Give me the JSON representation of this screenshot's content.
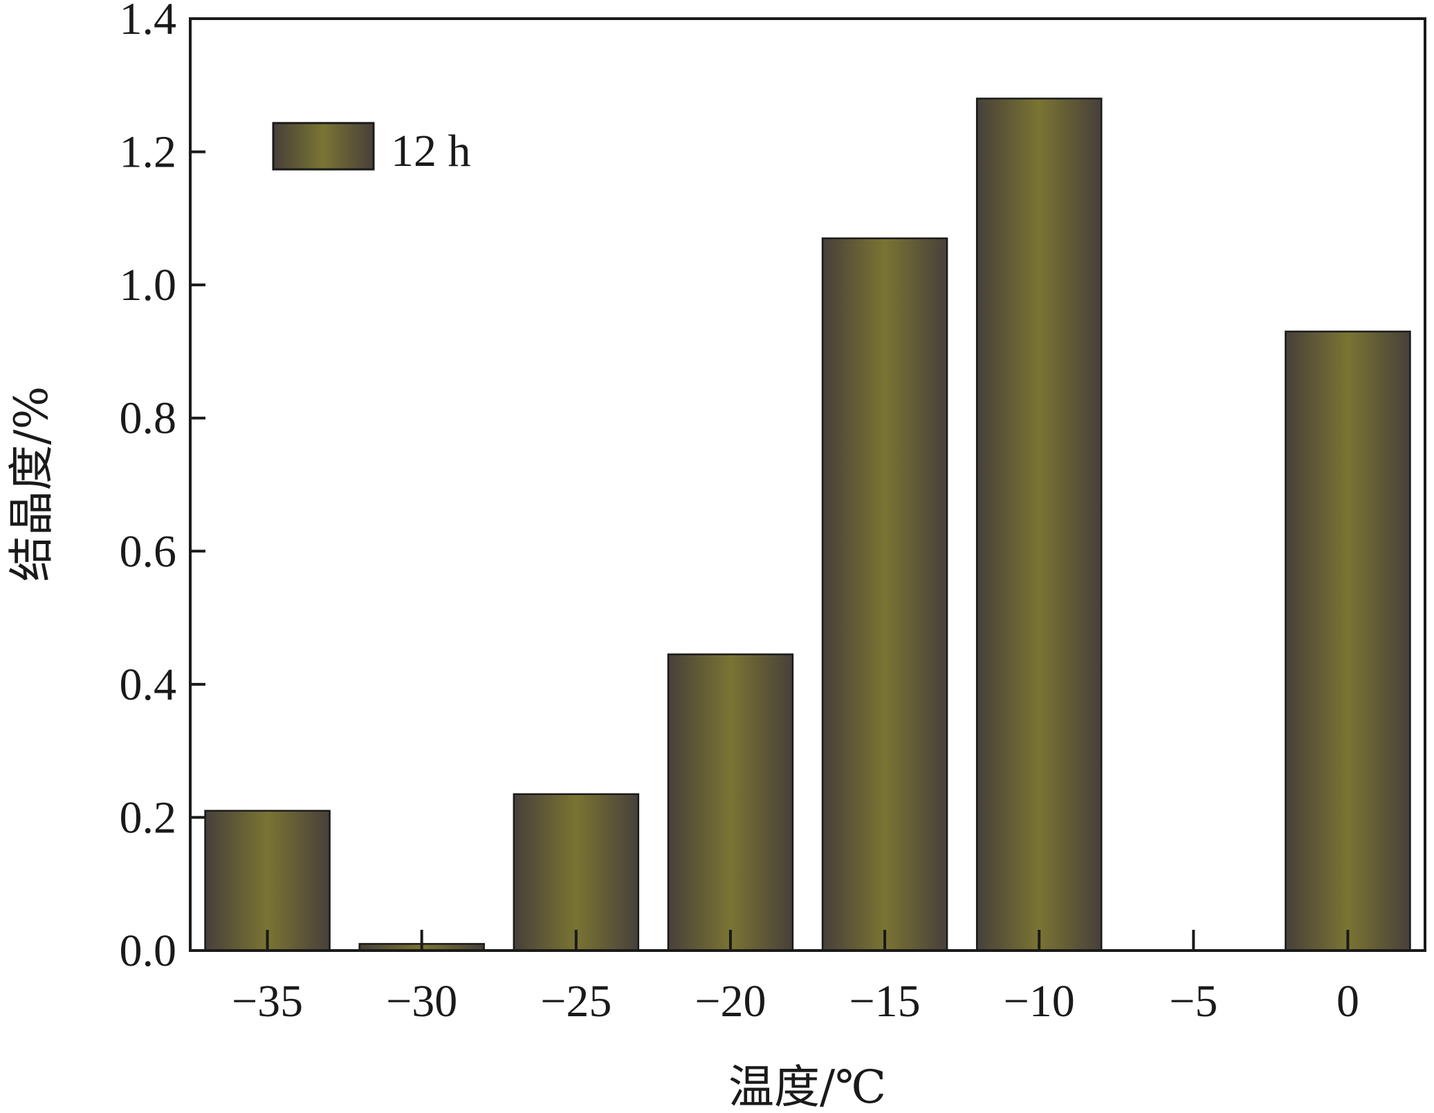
{
  "chart_data": {
    "type": "bar",
    "categories": [
      "−35",
      "−30",
      "−25",
      "−20",
      "−15",
      "−10",
      "−5",
      "0"
    ],
    "series": [
      {
        "name": "12 h",
        "values": [
          0.21,
          0.01,
          0.235,
          0.445,
          1.07,
          1.28,
          0,
          0.93
        ]
      }
    ],
    "xlabel": "温度/℃",
    "ylabel": "结晶度/%",
    "ylim": [
      0,
      1.4
    ],
    "yticks": [
      "0.0",
      "0.2",
      "0.4",
      "0.6",
      "0.8",
      "1.0",
      "1.2",
      "1.4"
    ],
    "grid": false,
    "legend_position": "top-left",
    "colors": {
      "bar_center": "#7a7433",
      "bar_edge": "#47403a",
      "axis": "#1a1a1a"
    }
  }
}
